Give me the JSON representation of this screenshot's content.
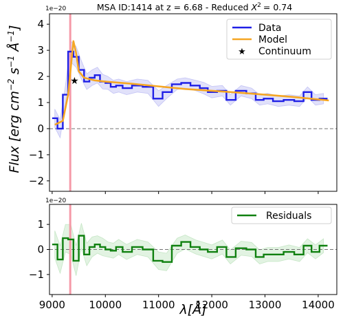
{
  "chart_data": [
    {
      "type": "line",
      "title": "MSA ID:1414 at z = 6.68 - Reduced",
      "title_stat_label": "X",
      "title_stat_sup": "2",
      "title_stat_value": "= 0.74",
      "offset_label": "1e−20",
      "ylabel_parts": [
        "Flux [",
        "erg cm",
        "−2",
        " s",
        "−1",
        " Å",
        "−1",
        "]"
      ],
      "ylim": [
        -2.4,
        4.4
      ],
      "yticks": [
        -2,
        -1,
        0,
        1,
        2,
        3,
        4
      ],
      "xlim": [
        8950,
        14350
      ],
      "vline_x": 9340,
      "hline_y": 0,
      "grid": false,
      "legend_position": "top-right",
      "legend": [
        "Data",
        "Model",
        "Continuum"
      ],
      "colors": {
        "data": "#1f1fe6",
        "model": "#f5a623",
        "continuum": "#000000",
        "vline": "#f59aa8",
        "band": "#9a9af0"
      },
      "series": [
        {
          "name": "Data",
          "style": "steps",
          "x": [
            9050,
            9150,
            9250,
            9350,
            9450,
            9550,
            9650,
            9750,
            9850,
            9950,
            10050,
            10150,
            10250,
            10400,
            10600,
            10800,
            11000,
            11150,
            11350,
            11500,
            11700,
            11850,
            12000,
            12200,
            12350,
            12550,
            12750,
            12900,
            13050,
            13250,
            13450,
            13650,
            13800,
            13950,
            14100
          ],
          "y": [
            0.4,
            0.0,
            1.3,
            2.95,
            2.75,
            2.25,
            1.8,
            1.95,
            2.05,
            1.8,
            1.75,
            1.6,
            1.65,
            1.55,
            1.65,
            1.6,
            1.15,
            1.4,
            1.7,
            1.75,
            1.65,
            1.55,
            1.4,
            1.45,
            1.1,
            1.45,
            1.35,
            1.1,
            1.15,
            1.05,
            1.1,
            1.05,
            1.4,
            1.1,
            1.15
          ],
          "err": [
            0.35,
            0.35,
            0.35,
            0.4,
            0.4,
            0.35,
            0.3,
            0.3,
            0.3,
            0.28,
            0.25,
            0.25,
            0.25,
            0.25,
            0.25,
            0.25,
            0.3,
            0.25,
            0.2,
            0.2,
            0.2,
            0.22,
            0.22,
            0.2,
            0.2,
            0.2,
            0.2,
            0.2,
            0.2,
            0.2,
            0.2,
            0.2,
            0.2,
            0.2,
            0.2
          ]
        },
        {
          "name": "Model",
          "style": "line",
          "x": [
            9050,
            9200,
            9300,
            9400,
            9450,
            9500,
            9600,
            9800,
            10000,
            10500,
            11000,
            11500,
            12000,
            12500,
            13000,
            13500,
            14000,
            14200
          ],
          "y": [
            0.15,
            0.3,
            1.3,
            3.35,
            2.9,
            2.2,
            1.95,
            1.85,
            1.8,
            1.72,
            1.62,
            1.52,
            1.45,
            1.38,
            1.3,
            1.22,
            1.12,
            1.08
          ]
        },
        {
          "name": "Continuum",
          "style": "marker",
          "x": [
            9420
          ],
          "y": [
            1.85
          ]
        }
      ]
    },
    {
      "type": "line",
      "offset_label": "1e−20",
      "xlabel": "λ[Å]",
      "ylim": [
        -1.8,
        1.8
      ],
      "yticks": [
        -1,
        0,
        1
      ],
      "xlim": [
        8950,
        14350
      ],
      "xticks": [
        9000,
        10000,
        11000,
        12000,
        13000,
        14000
      ],
      "vline_x": 9340,
      "hline_y": 0,
      "legend_position": "top-right",
      "legend": [
        "Residuals"
      ],
      "colors": {
        "residuals": "#0f800f",
        "band": "#9ed69e"
      },
      "series": [
        {
          "name": "Residuals",
          "style": "steps",
          "x": [
            9050,
            9150,
            9250,
            9350,
            9450,
            9550,
            9650,
            9750,
            9850,
            9950,
            10050,
            10150,
            10250,
            10400,
            10600,
            10800,
            11000,
            11150,
            11350,
            11500,
            11700,
            11850,
            12000,
            12200,
            12350,
            12550,
            12750,
            12900,
            13050,
            13250,
            13450,
            13650,
            13800,
            13950,
            14100
          ],
          "y": [
            0.2,
            -0.4,
            0.45,
            0.4,
            -0.45,
            0.55,
            -0.2,
            0.1,
            0.2,
            0.1,
            0.0,
            -0.05,
            0.1,
            -0.1,
            0.1,
            0.0,
            -0.45,
            -0.5,
            0.15,
            0.3,
            0.1,
            0.0,
            -0.1,
            0.1,
            -0.3,
            0.05,
            0.0,
            -0.3,
            -0.2,
            -0.2,
            -0.1,
            -0.2,
            0.15,
            -0.1,
            0.15
          ],
          "err": [
            0.55,
            0.55,
            0.55,
            0.6,
            0.6,
            0.5,
            0.45,
            0.4,
            0.35,
            0.35,
            0.3,
            0.3,
            0.3,
            0.3,
            0.3,
            0.3,
            0.35,
            0.35,
            0.3,
            0.28,
            0.28,
            0.28,
            0.28,
            0.28,
            0.28,
            0.28,
            0.28,
            0.28,
            0.28,
            0.28,
            0.28,
            0.28,
            0.28,
            0.28,
            0.28
          ]
        }
      ]
    }
  ]
}
